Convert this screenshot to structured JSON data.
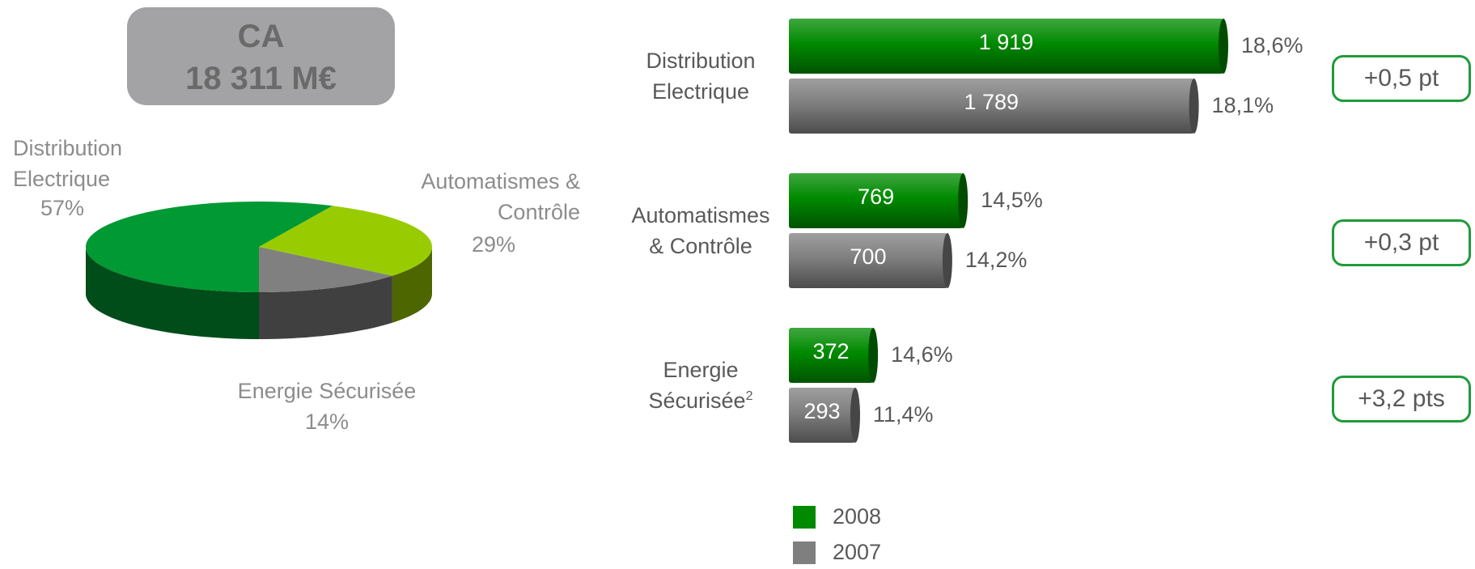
{
  "summary": {
    "label": "CA",
    "value": "18 311 M€"
  },
  "chart_data": [
    {
      "type": "pie",
      "categories": [
        "Distribution Electrique",
        "Automatismes & Contrôle",
        "Energie Sécurisée"
      ],
      "values": [
        57,
        29,
        14
      ],
      "value_labels": [
        "57%",
        "29%",
        "14%"
      ],
      "colors": [
        "#009933",
        "#99cc00",
        "#808080"
      ]
    },
    {
      "type": "bar",
      "categories": [
        "Distribution Electrique",
        "Automatismes & Contrôle",
        "Energie Sécurisée"
      ],
      "category_notes": [
        null,
        null,
        "2"
      ],
      "series": [
        {
          "name": "2008",
          "color": "#008a00",
          "values": [
            1919,
            769,
            372
          ],
          "value_labels": [
            "1 919",
            "769",
            "372"
          ],
          "margin_labels": [
            "18,6%",
            "14,5%",
            "14,6%"
          ]
        },
        {
          "name": "2007",
          "color": "#7f7f7f",
          "values": [
            1789,
            700,
            293
          ],
          "value_labels": [
            "1 789",
            "700",
            "293"
          ],
          "margin_labels": [
            "18,1%",
            "14,2%",
            "11,4%"
          ]
        }
      ],
      "changes": [
        "+0,5 pt",
        "+0,3 pt",
        "+3,2 pts"
      ]
    }
  ]
}
